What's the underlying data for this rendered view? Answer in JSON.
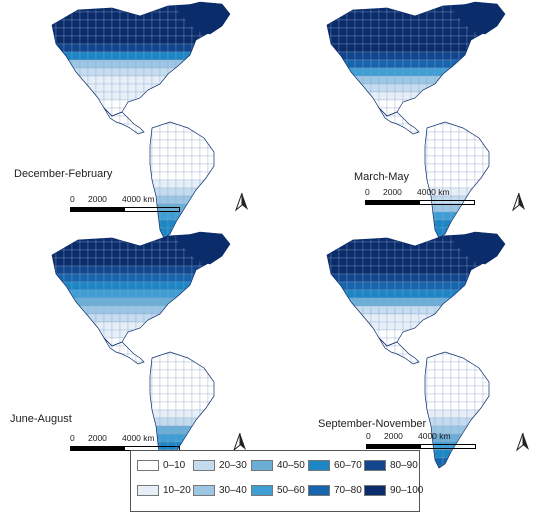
{
  "panels": [
    {
      "season": "December-February",
      "bands": [
        9,
        9,
        9,
        9,
        9,
        8,
        6,
        3,
        2,
        1,
        1,
        1,
        0,
        0,
        0,
        0,
        0,
        0,
        0,
        0,
        0,
        0,
        1,
        2,
        3,
        4,
        5,
        6,
        6,
        7
      ]
    },
    {
      "season": "March-May",
      "bands": [
        9,
        9,
        9,
        9,
        9,
        9,
        8,
        7,
        5,
        3,
        2,
        1,
        0,
        0,
        0,
        0,
        0,
        0,
        0,
        0,
        0,
        0,
        0,
        1,
        2,
        3,
        5,
        6,
        6,
        7
      ]
    },
    {
      "season": "June-August",
      "bands": [
        9,
        9,
        9,
        9,
        8,
        7,
        6,
        5,
        4,
        3,
        2,
        1,
        1,
        0,
        0,
        0,
        0,
        0,
        0,
        0,
        0,
        0,
        1,
        2,
        4,
        5,
        6,
        7,
        8,
        9
      ]
    },
    {
      "season": "September-November",
      "bands": [
        9,
        9,
        9,
        9,
        9,
        8,
        7,
        6,
        4,
        2,
        1,
        1,
        0,
        0,
        0,
        0,
        0,
        0,
        0,
        0,
        0,
        0,
        1,
        2,
        3,
        4,
        5,
        6,
        7,
        8
      ]
    }
  ],
  "scale_bar": {
    "labels": [
      "0",
      "2000",
      "4000 km"
    ]
  },
  "north_arrow_icon": "north-arrow-icon",
  "legend": {
    "entries": [
      {
        "label": "0–10",
        "color": "#ffffff"
      },
      {
        "label": "10–20",
        "color": "#e6eef8"
      },
      {
        "label": "20–30",
        "color": "#c5dcef"
      },
      {
        "label": "30–40",
        "color": "#9cc6e4"
      },
      {
        "label": "40–50",
        "color": "#6baed6"
      },
      {
        "label": "50–60",
        "color": "#3f9fd4"
      },
      {
        "label": "60–70",
        "color": "#1d86c4"
      },
      {
        "label": "70–80",
        "color": "#1766ad"
      },
      {
        "label": "80–90",
        "color": "#11468e"
      },
      {
        "label": "90–100",
        "color": "#0b2c6b"
      }
    ]
  }
}
